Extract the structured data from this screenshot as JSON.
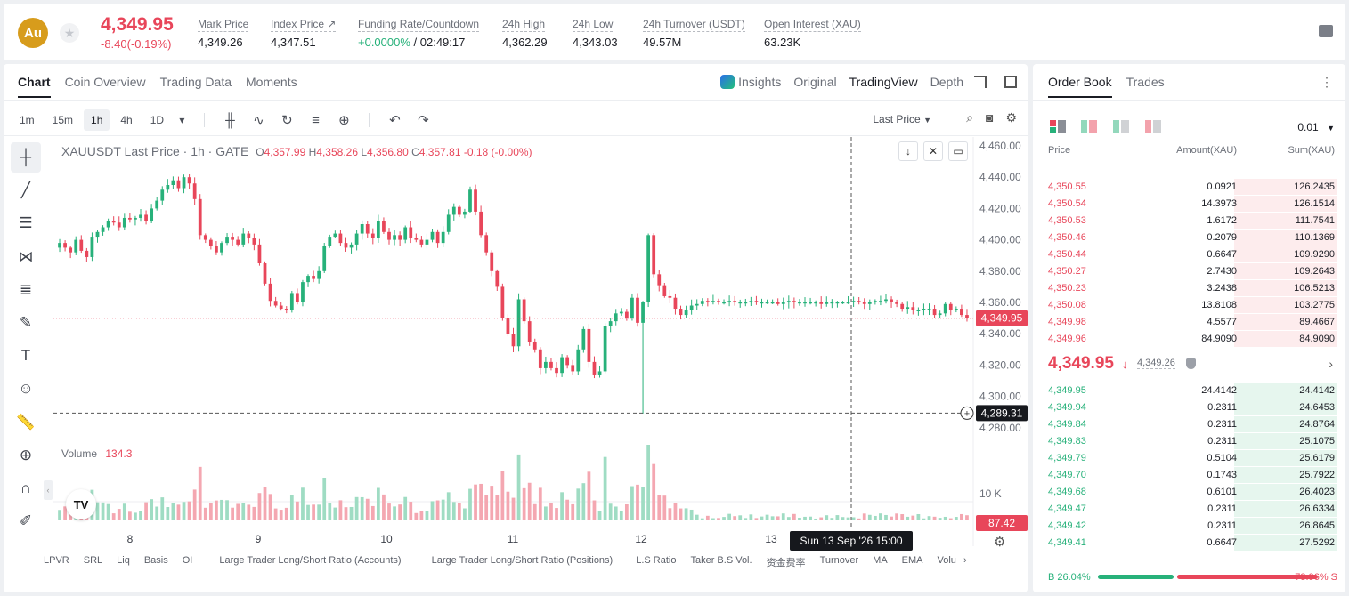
{
  "header": {
    "logo_text": "Au",
    "last_price": "4,349.95",
    "change": "-8.40(-0.19%)",
    "stats": [
      {
        "label": "Mark Price",
        "value": "4,349.26"
      },
      {
        "label": "Index Price ↗",
        "value": "4,347.51"
      },
      {
        "label": "Funding Rate/Countdown",
        "value_green": "+0.0000%",
        "value": " / 02:49:17"
      },
      {
        "label": "24h High",
        "value": "4,362.29"
      },
      {
        "label": "24h Low",
        "value": "4,343.03"
      },
      {
        "label": "24h Turnover (USDT)",
        "value": "49.57M"
      },
      {
        "label": "Open Interest (XAU)",
        "value": "63.23K"
      }
    ]
  },
  "chart_tabs": [
    "Chart",
    "Coin Overview",
    "Trading Data",
    "Moments"
  ],
  "view_tabs": {
    "insights": "Insights",
    "original": "Original",
    "tradingview": "TradingView",
    "depth": "Depth"
  },
  "timeframes": [
    "1m",
    "15m",
    "1h",
    "4h",
    "1D"
  ],
  "active_timeframe": "1h",
  "price_type": "Last Price",
  "legend": {
    "symbol": "XAUUSDT Last Price · 1h · GATE",
    "o_label": "O",
    "o": "4,357.99",
    "h_label": "H",
    "h": "4,358.26",
    "l_label": "L",
    "l": "4,356.80",
    "c_label": "C",
    "c": "4,357.81",
    "chg": "-0.18 (-0.00%)"
  },
  "volume_legend": {
    "label": "Volume",
    "value": "134.3"
  },
  "bottom_indicators": [
    "LPVR",
    "SRL",
    "Liq",
    "Basis",
    "OI",
    "Large Trader Long/Short Ratio (Accounts)",
    "Large Trader Long/Short Ratio (Positions)",
    "L.S Ratio",
    "Taker B.S Vol.",
    "资金费率",
    "Turnover",
    "MA",
    "EMA",
    "Volu"
  ],
  "chart_data": {
    "type": "candlestick",
    "price_axis": {
      "ticks": [
        "4,460.00",
        "4,440.00",
        "4,420.00",
        "4,400.00",
        "4,380.00",
        "4,360.00",
        "4,340.00",
        "4,320.00",
        "4,300.00",
        "4,280.00"
      ],
      "min": 4280,
      "max": 4460
    },
    "x_ticks": [
      "8",
      "9",
      "10",
      "11",
      "12",
      "13"
    ],
    "current_price_label": "4,349.95",
    "crosshair_price_label": "4,289.31",
    "crosshair_time_label": "Sun 13 Sep '26   15:00",
    "volume_axis_label": "10 K",
    "volume_current_label": "87.42",
    "closes": [
      4398,
      4395,
      4392,
      4400,
      4393,
      4389,
      4402,
      4405,
      4408,
      4412,
      4411,
      4408,
      4414,
      4413,
      4414,
      4416,
      4412,
      4420,
      4425,
      4432,
      4435,
      4438,
      4433,
      4440,
      4436,
      4426,
      4403,
      4400,
      4396,
      4392,
      4398,
      4402,
      4400,
      4397,
      4404,
      4401,
      4397,
      4385,
      4372,
      4361,
      4358,
      4356,
      4355,
      4366,
      4360,
      4373,
      4377,
      4375,
      4380,
      4396,
      4402,
      4404,
      4398,
      4395,
      4397,
      4404,
      4410,
      4404,
      4401,
      4412,
      4405,
      4400,
      4403,
      4400,
      4408,
      4401,
      4400,
      4397,
      4400,
      4405,
      4398,
      4405,
      4416,
      4421,
      4416,
      4418,
      4432,
      4418,
      4403,
      4392,
      4380,
      4370,
      4350,
      4340,
      4332,
      4362,
      4348,
      4335,
      4330,
      4318,
      4322,
      4318,
      4315,
      4325,
      4320,
      4316,
      4330,
      4343,
      4322,
      4314,
      4316,
      4345,
      4348,
      4353,
      4354,
      4350,
      4363,
      4347,
      4360,
      4403,
      4378,
      4371,
      4364,
      4363,
      4356,
      4352,
      4355,
      4358,
      4359,
      4361,
      4360,
      4361,
      4360,
      4360,
      4361,
      4360,
      4360,
      4360,
      4361,
      4360,
      4360,
      4360,
      4360,
      4359,
      4360,
      4361,
      4360,
      4360,
      4360,
      4360,
      4360,
      4359,
      4360,
      4360,
      4360,
      4360,
      4360,
      4361,
      4360,
      4359,
      4360,
      4361,
      4361,
      4362,
      4360,
      4359,
      4356,
      4357,
      4355,
      4355,
      4356,
      4356,
      4352,
      4353,
      4359,
      4355,
      4356,
      4352,
      4350
    ],
    "volume_max_label": "10 K"
  },
  "orderbook": {
    "tabs": [
      "Order Book",
      "Trades"
    ],
    "precision": "0.01",
    "headers": {
      "price": "Price",
      "amount": "Amount(XAU)",
      "sum": "Sum(XAU)"
    },
    "asks": [
      {
        "price": "4,350.55",
        "amount": "0.0921",
        "sum": "126.2435",
        "depth": 1.0
      },
      {
        "price": "4,350.54",
        "amount": "14.3973",
        "sum": "126.1514",
        "depth": 1.0
      },
      {
        "price": "4,350.53",
        "amount": "1.6172",
        "sum": "111.7541",
        "depth": 1.0
      },
      {
        "price": "4,350.46",
        "amount": "0.2079",
        "sum": "110.1369",
        "depth": 1.0
      },
      {
        "price": "4,350.44",
        "amount": "0.6647",
        "sum": "109.9290",
        "depth": 1.0
      },
      {
        "price": "4,350.27",
        "amount": "2.7430",
        "sum": "109.2643",
        "depth": 1.0
      },
      {
        "price": "4,350.23",
        "amount": "3.2438",
        "sum": "106.5213",
        "depth": 1.0
      },
      {
        "price": "4,350.08",
        "amount": "13.8108",
        "sum": "103.2775",
        "depth": 1.0
      },
      {
        "price": "4,349.98",
        "amount": "4.5577",
        "sum": "89.4667",
        "depth": 1.0
      },
      {
        "price": "4,349.96",
        "amount": "84.9090",
        "sum": "84.9090",
        "depth": 1.0
      }
    ],
    "mid_price": "4,349.95",
    "mid_arrow": "↓",
    "mark_price": "4,349.26",
    "bids": [
      {
        "price": "4,349.95",
        "amount": "24.4142",
        "sum": "24.4142",
        "depth": 1.0
      },
      {
        "price": "4,349.94",
        "amount": "0.2311",
        "sum": "24.6453",
        "depth": 1.0
      },
      {
        "price": "4,349.84",
        "amount": "0.2311",
        "sum": "24.8764",
        "depth": 1.0
      },
      {
        "price": "4,349.83",
        "amount": "0.2311",
        "sum": "25.1075",
        "depth": 1.0
      },
      {
        "price": "4,349.79",
        "amount": "0.5104",
        "sum": "25.6179",
        "depth": 1.0
      },
      {
        "price": "4,349.70",
        "amount": "0.1743",
        "sum": "25.7922",
        "depth": 1.0
      },
      {
        "price": "4,349.68",
        "amount": "0.6101",
        "sum": "26.4023",
        "depth": 1.0
      },
      {
        "price": "4,349.47",
        "amount": "0.2311",
        "sum": "26.6334",
        "depth": 1.0
      },
      {
        "price": "4,349.42",
        "amount": "0.2311",
        "sum": "26.8645",
        "depth": 1.0
      },
      {
        "price": "4,349.41",
        "amount": "0.6647",
        "sum": "27.5292",
        "depth": 1.0
      }
    ],
    "buy_ratio": "B 26.04%",
    "sell_ratio": "73.96% S",
    "buy_fraction": 0.2604,
    "colors": {
      "ask": "#e8465a",
      "bid": "#27b17a"
    }
  }
}
